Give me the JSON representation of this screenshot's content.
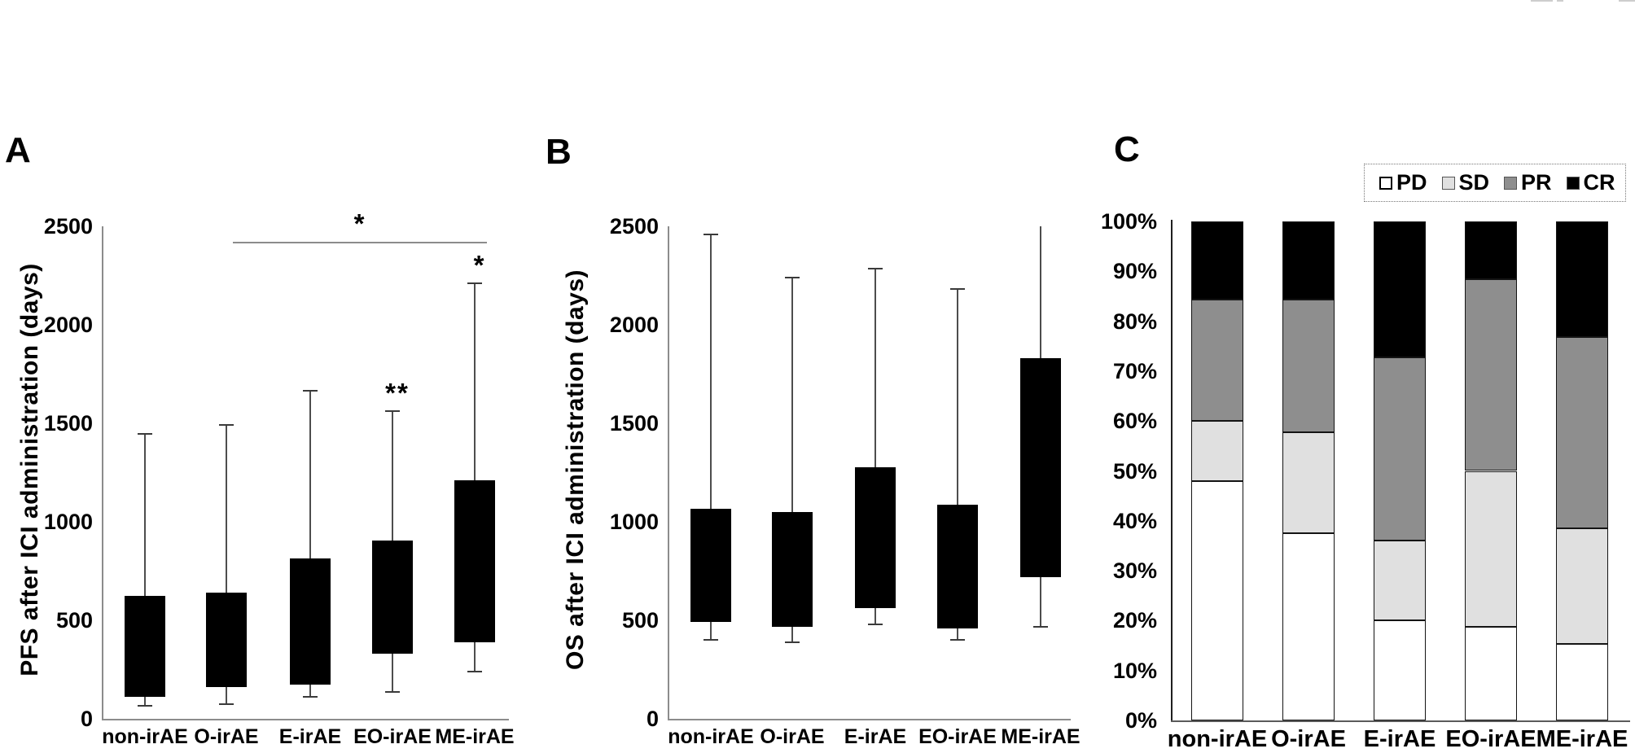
{
  "figure": {
    "background": "#ffffff",
    "panel_a": {
      "letter": "A",
      "ylabel": "PFS after ICI administration (days)"
    },
    "panel_b": {
      "letter": "B",
      "ylabel": "OS after ICI administration (days)"
    },
    "panel_c": {
      "letter": "C"
    },
    "colors": {
      "box_fill": "#000000",
      "axis": "#8c8c8c",
      "whisker": "#4d4d4d"
    }
  },
  "chart_data": [
    {
      "panel": "A",
      "type": "box",
      "ylabel": "PFS after ICI administration (days)",
      "ylim": [
        0,
        2500
      ],
      "yticks": [
        0,
        500,
        1000,
        1500,
        2000,
        2500
      ],
      "grid": false,
      "categories": [
        "non-irAE",
        "O-irAE",
        "E-irAE",
        "EO-irAE",
        "ME-irAE"
      ],
      "boxes": [
        {
          "category": "non-irAE",
          "whisker_low": 65,
          "q1": 110,
          "q3": 625,
          "whisker_high": 1445,
          "annotation": ""
        },
        {
          "category": "O-irAE",
          "whisker_low": 75,
          "q1": 160,
          "q3": 640,
          "whisker_high": 1490,
          "annotation": ""
        },
        {
          "category": "E-irAE",
          "whisker_low": 110,
          "q1": 175,
          "q3": 815,
          "whisker_high": 1665,
          "annotation": ""
        },
        {
          "category": "EO-irAE",
          "whisker_low": 135,
          "q1": 330,
          "q3": 905,
          "whisker_high": 1560,
          "annotation": "**"
        },
        {
          "category": "ME-irAE",
          "whisker_low": 240,
          "q1": 390,
          "q3": 1210,
          "whisker_high": 2210,
          "annotation": "*"
        }
      ],
      "significance_bracket": {
        "from": "O-irAE",
        "to": "ME-irAE",
        "label": "*",
        "y_value": 2420
      }
    },
    {
      "panel": "B",
      "type": "box",
      "ylabel": "OS after ICI administration (days)",
      "ylim": [
        0,
        2500
      ],
      "yticks": [
        0,
        500,
        1000,
        1500,
        2000,
        2500
      ],
      "grid": false,
      "categories": [
        "non-irAE",
        "O-irAE",
        "E-irAE",
        "EO-irAE",
        "ME-irAE"
      ],
      "boxes": [
        {
          "category": "non-irAE",
          "whisker_low": 400,
          "q1": 490,
          "q3": 1065,
          "whisker_high": 2460,
          "annotation": ""
        },
        {
          "category": "O-irAE",
          "whisker_low": 390,
          "q1": 465,
          "q3": 1050,
          "whisker_high": 2240,
          "annotation": ""
        },
        {
          "category": "E-irAE",
          "whisker_low": 480,
          "q1": 560,
          "q3": 1275,
          "whisker_high": 2285,
          "annotation": ""
        },
        {
          "category": "EO-irAE",
          "whisker_low": 400,
          "q1": 460,
          "q3": 1085,
          "whisker_high": 2180,
          "annotation": ""
        },
        {
          "category": "ME-irAE",
          "whisker_low": 465,
          "q1": 720,
          "q3": 1830,
          "whisker_high": 2500,
          "annotation": "",
          "cap_high": false
        }
      ],
      "significance_bracket": null
    },
    {
      "panel": "C",
      "type": "stacked_bar_percent",
      "ylim": [
        0,
        100
      ],
      "ytick_labels": [
        "0%",
        "10%",
        "20%",
        "30%",
        "40%",
        "50%",
        "60%",
        "70%",
        "80%",
        "90%",
        "100%"
      ],
      "grid": false,
      "categories": [
        "non-irAE",
        "O-irAE",
        "E-irAE",
        "EO-irAE",
        "ME-irAE"
      ],
      "series": [
        {
          "name": "PD",
          "color": "#ffffff",
          "values": [
            48,
            37.5,
            20,
            18.8,
            15.4
          ]
        },
        {
          "name": "SD",
          "color": "#e0e0e0",
          "values": [
            12,
            20.2,
            16,
            31.2,
            23.1
          ]
        },
        {
          "name": "PR",
          "color": "#8e8e8e",
          "values": [
            24.4,
            26.7,
            36.8,
            38.4,
            38.4
          ]
        },
        {
          "name": "CR",
          "color": "#000000",
          "values": [
            15.6,
            15.6,
            27.2,
            11.6,
            23.1
          ]
        }
      ],
      "legend": {
        "position": "top-right",
        "items": [
          "PD",
          "SD",
          "PR",
          "CR"
        ]
      }
    }
  ]
}
